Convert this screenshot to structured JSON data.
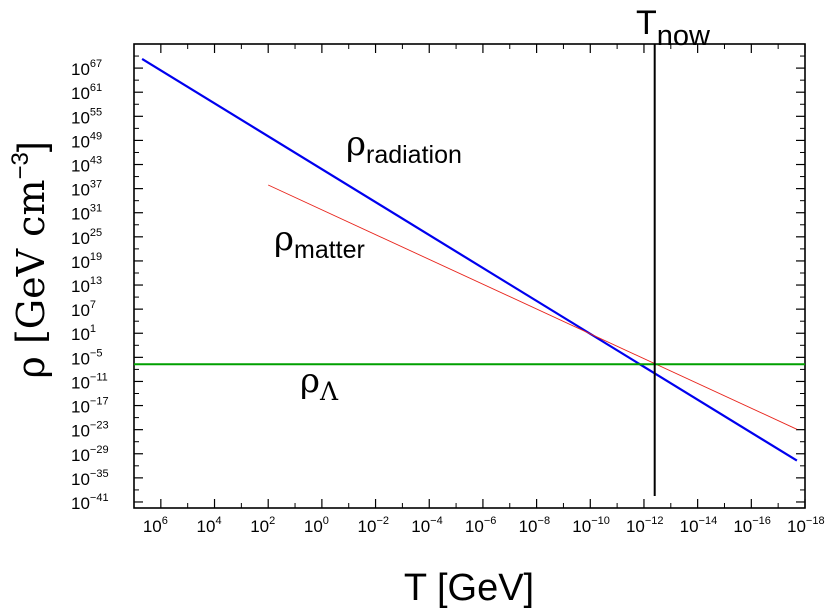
{
  "chart_data": {
    "type": "line",
    "xlabel": "T [GeV]",
    "ylabel": "ρ [GeV cm",
    "ylabel_sup": "−3",
    "ylabel_close": "]",
    "x_scale": "log",
    "x_reversed": true,
    "xlim": [
      7.0,
      -18.0
    ],
    "ylim": [
      -42.5,
      73.0
    ],
    "x_ticks": [
      {
        "base": "10",
        "exp": "6",
        "value": 6
      },
      {
        "base": "10",
        "exp": "4",
        "value": 4
      },
      {
        "base": "10",
        "exp": "2",
        "value": 2
      },
      {
        "base": "10",
        "exp": "0",
        "value": 0
      },
      {
        "base": "10",
        "exp": "−2",
        "value": -2
      },
      {
        "base": "10",
        "exp": "−4",
        "value": -4
      },
      {
        "base": "10",
        "exp": "−6",
        "value": -6
      },
      {
        "base": "10",
        "exp": "−8",
        "value": -8
      },
      {
        "base": "10",
        "exp": "−10",
        "value": -10
      },
      {
        "base": "10",
        "exp": "−12",
        "value": -12
      },
      {
        "base": "10",
        "exp": "−14",
        "value": -14
      },
      {
        "base": "10",
        "exp": "−16",
        "value": -16
      },
      {
        "base": "10",
        "exp": "−18",
        "value": -18
      }
    ],
    "y_ticks": [
      {
        "base": "10",
        "exp": "67",
        "value": 67
      },
      {
        "base": "10",
        "exp": "61",
        "value": 61
      },
      {
        "base": "10",
        "exp": "55",
        "value": 55
      },
      {
        "base": "10",
        "exp": "49",
        "value": 49
      },
      {
        "base": "10",
        "exp": "43",
        "value": 43
      },
      {
        "base": "10",
        "exp": "37",
        "value": 37
      },
      {
        "base": "10",
        "exp": "31",
        "value": 31
      },
      {
        "base": "10",
        "exp": "25",
        "value": 25
      },
      {
        "base": "10",
        "exp": "19",
        "value": 19
      },
      {
        "base": "10",
        "exp": "13",
        "value": 13
      },
      {
        "base": "10",
        "exp": "7",
        "value": 7
      },
      {
        "base": "10",
        "exp": "1",
        "value": 1
      },
      {
        "base": "10",
        "exp": "−5",
        "value": -5
      },
      {
        "base": "10",
        "exp": "−11",
        "value": -11
      },
      {
        "base": "10",
        "exp": "−17",
        "value": -17
      },
      {
        "base": "10",
        "exp": "−23",
        "value": -23
      },
      {
        "base": "10",
        "exp": "−29",
        "value": -29
      },
      {
        "base": "10",
        "exp": "−35",
        "value": -35
      },
      {
        "base": "10",
        "exp": "−41",
        "value": -41
      }
    ],
    "series": [
      {
        "label_main": "ρ",
        "label_sub": "radiation",
        "color": "#0000ee",
        "width": 2.2,
        "x": [
          6.7,
          -17.7
        ],
        "y": [
          69.3,
          -30.7
        ]
      },
      {
        "label_main": "ρ",
        "label_sub": "matter",
        "color": "#e8241c",
        "width": 0.9,
        "x": [
          2.0,
          -17.7
        ],
        "y": [
          37.9,
          -22.9
        ]
      },
      {
        "label_main": "ρ",
        "label_sub": "Λ",
        "color": "#00a000",
        "width": 2.0,
        "x": [
          7.0,
          -18.0
        ],
        "y": [
          -6.7,
          -6.7
        ]
      }
    ],
    "vline": {
      "label_main": "T",
      "label_sub": "now",
      "color": "#000000",
      "x": -12.4
    }
  }
}
